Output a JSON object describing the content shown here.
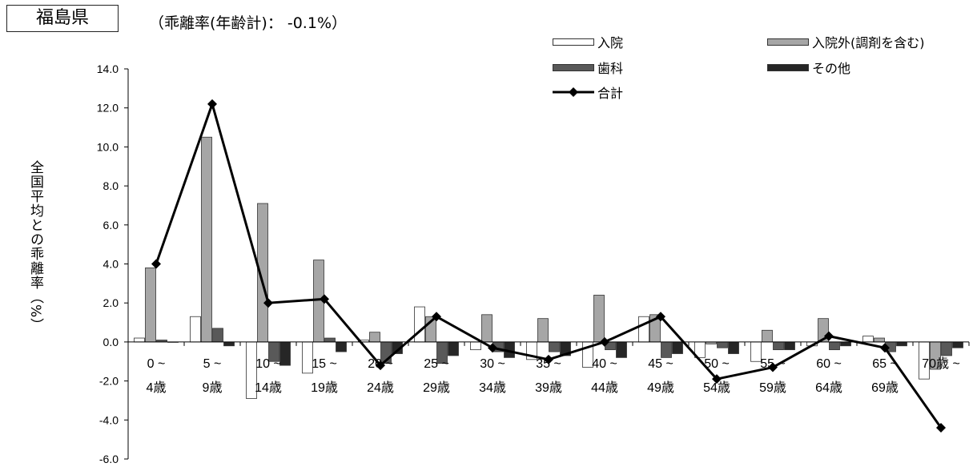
{
  "header": {
    "prefecture": "福島県",
    "subtitle": "（乖離率(年齢計)：  -0.1%）"
  },
  "colors": {
    "nyuin": "#ffffff",
    "nyuingai": "#a6a6a6",
    "shika": "#595959",
    "sonota": "#262626",
    "total": "#000000"
  },
  "chart_data": {
    "type": "bar",
    "title": "",
    "xlabel": "",
    "ylabel": "全国平均との乖離率（%）",
    "ylim": [
      -6.0,
      14.0
    ],
    "yticks": [
      "14.0",
      "12.0",
      "10.0",
      "8.0",
      "6.0",
      "4.0",
      "2.0",
      "0.0",
      "-2.0",
      "-4.0",
      "-6.0"
    ],
    "categories": [
      [
        "0 ~",
        "4歳"
      ],
      [
        "5 ~",
        "9歳"
      ],
      [
        "10 ~",
        "14歳"
      ],
      [
        "15 ~",
        "19歳"
      ],
      [
        "20 ~",
        "24歳"
      ],
      [
        "25 ~",
        "29歳"
      ],
      [
        "30 ~",
        "34歳"
      ],
      [
        "35 ~",
        "39歳"
      ],
      [
        "40 ~",
        "44歳"
      ],
      [
        "45 ~",
        "49歳"
      ],
      [
        "50 ~",
        "54歳"
      ],
      [
        "55 ~",
        "59歳"
      ],
      [
        "60 ~",
        "64歳"
      ],
      [
        "65 ~",
        "69歳"
      ],
      [
        "70歳 ~",
        ""
      ]
    ],
    "series": [
      {
        "name": "入院",
        "kind": "bar",
        "values": [
          0.2,
          1.3,
          -2.9,
          -1.6,
          0.1,
          1.8,
          -0.4,
          -0.9,
          -1.3,
          1.3,
          -0.8,
          -1.0,
          -0.2,
          0.3,
          -1.9
        ]
      },
      {
        "name": "入院外(調剤を含む)",
        "kind": "bar",
        "values": [
          3.8,
          10.5,
          7.1,
          4.2,
          0.5,
          1.3,
          1.4,
          1.2,
          2.4,
          1.4,
          -0.1,
          0.6,
          1.2,
          0.2,
          -1.4
        ]
      },
      {
        "name": "歯科",
        "kind": "bar",
        "values": [
          0.1,
          0.7,
          -1.0,
          0.2,
          -1.1,
          -1.1,
          -0.5,
          -0.5,
          -0.4,
          -0.8,
          -0.3,
          -0.4,
          -0.4,
          -0.5,
          -0.7
        ]
      },
      {
        "name": "その他",
        "kind": "bar",
        "values": [
          0.0,
          -0.2,
          -1.2,
          -0.5,
          -0.6,
          -0.7,
          -0.8,
          -0.7,
          -0.8,
          -0.6,
          -0.6,
          -0.4,
          -0.2,
          -0.2,
          -0.3
        ]
      },
      {
        "name": "合計",
        "kind": "line",
        "values": [
          4.0,
          12.2,
          2.0,
          2.2,
          -1.2,
          1.3,
          -0.3,
          -0.9,
          0.0,
          1.3,
          -1.9,
          -1.3,
          0.3,
          -0.3,
          -4.4
        ]
      }
    ],
    "legend": {
      "placement": "top-right",
      "labels": [
        "入院",
        "入院外(調剤を含む)",
        "歯科",
        "その他",
        "合計"
      ]
    }
  }
}
